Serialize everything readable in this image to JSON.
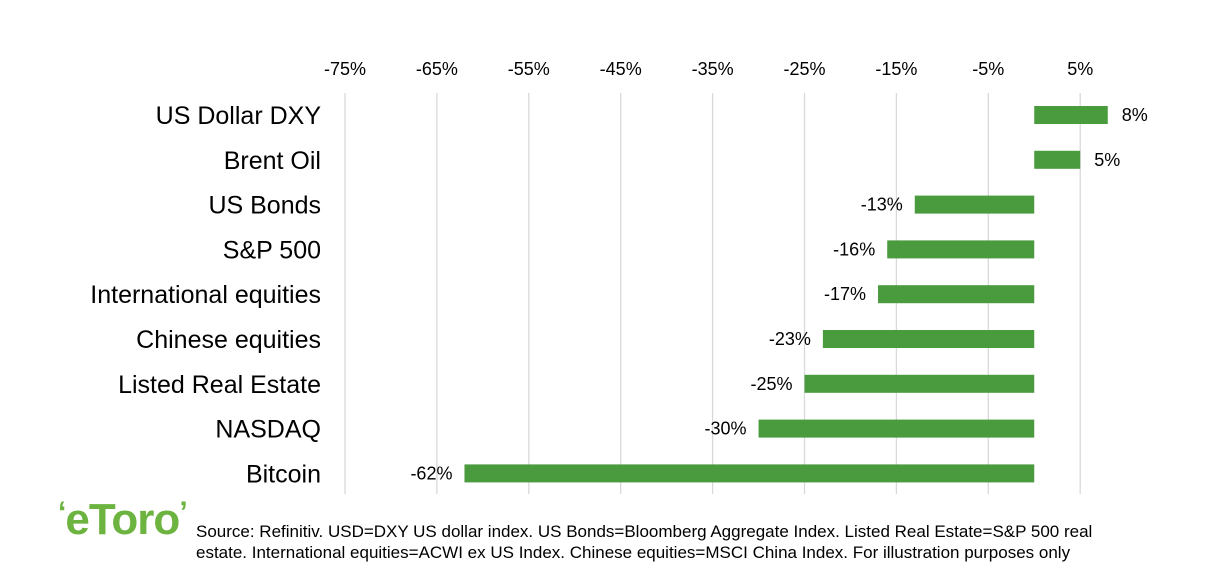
{
  "chart_data": {
    "type": "bar",
    "orientation": "horizontal",
    "categories": [
      "US Dollar DXY",
      "Brent Oil",
      "US Bonds",
      "S&P 500",
      "International equities",
      "Chinese equities",
      "Listed Real Estate",
      "NASDAQ",
      "Bitcoin"
    ],
    "values": [
      8,
      5,
      -13,
      -16,
      -17,
      -23,
      -25,
      -30,
      -62
    ],
    "value_labels": [
      "8%",
      "5%",
      "-13%",
      "-16%",
      "-17%",
      "-23%",
      "-25%",
      "-30%",
      "-62%"
    ],
    "xticks": [
      -75,
      -65,
      -55,
      -45,
      -35,
      -25,
      -15,
      -5,
      5
    ],
    "xtick_labels": [
      "-75%",
      "-65%",
      "-55%",
      "-45%",
      "-35%",
      "-25%",
      "-15%",
      "-5%",
      "5%"
    ],
    "xlim": [
      -75,
      10
    ],
    "xaxis_position": "top",
    "grid": true,
    "bar_color": "#4a9a3e",
    "grid_color": "#d9d9d9"
  },
  "logo": {
    "text": "eToro",
    "color": "#6cb33f"
  },
  "source": {
    "line1": "Source: Refinitiv. USD=DXY US dollar index. US Bonds=Bloomberg Aggregate Index. Listed Real Estate=S&P 500 real",
    "line2": "estate. International equities=ACWI ex US Index. Chinese equities=MSCI China Index. For illustration purposes only"
  }
}
